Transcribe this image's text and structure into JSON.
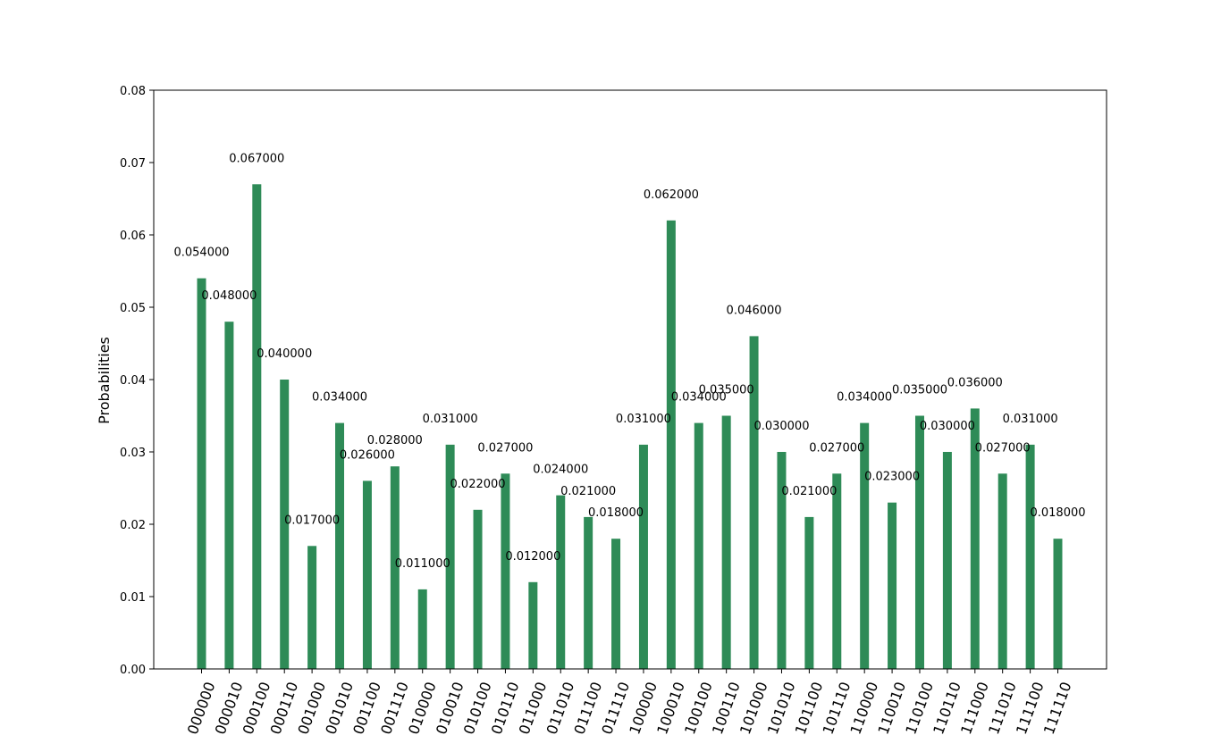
{
  "chart_data": {
    "type": "bar",
    "title": "",
    "xlabel": "",
    "ylabel": "Probabilities",
    "ylim": [
      0,
      0.08
    ],
    "yticks": [
      "0.00",
      "0.01",
      "0.02",
      "0.03",
      "0.04",
      "0.05",
      "0.06",
      "0.07",
      "0.08"
    ],
    "grid": false,
    "bar_color": "#2e8b57",
    "categories": [
      "000000",
      "000010",
      "000100",
      "000110",
      "001000",
      "001010",
      "001100",
      "001110",
      "010000",
      "010010",
      "010100",
      "010110",
      "011000",
      "011010",
      "011100",
      "011110",
      "100000",
      "100010",
      "100100",
      "100110",
      "101000",
      "101010",
      "101100",
      "101110",
      "110000",
      "110010",
      "110100",
      "110110",
      "111000",
      "111010",
      "111100",
      "111110"
    ],
    "values": [
      0.054,
      0.048,
      0.067,
      0.04,
      0.017,
      0.034,
      0.026,
      0.028,
      0.011,
      0.031,
      0.022,
      0.027,
      0.012,
      0.024,
      0.021,
      0.018,
      0.031,
      0.062,
      0.034,
      0.035,
      0.046,
      0.03,
      0.021,
      0.027,
      0.034,
      0.023,
      0.035,
      0.03,
      0.036,
      0.027,
      0.031,
      0.018
    ],
    "data_labels": [
      "0.054000",
      "0.048000",
      "0.067000",
      "0.040000",
      "0.017000",
      "0.034000",
      "0.026000",
      "0.028000",
      "0.011000",
      "0.031000",
      "0.022000",
      "0.027000",
      "0.012000",
      "0.024000",
      "0.021000",
      "0.018000",
      "0.031000",
      "0.062000",
      "0.034000",
      "0.035000",
      "0.046000",
      "0.030000",
      "0.021000",
      "0.027000",
      "0.034000",
      "0.023000",
      "0.035000",
      "0.030000",
      "0.036000",
      "0.027000",
      "0.031000",
      "0.018000"
    ]
  }
}
